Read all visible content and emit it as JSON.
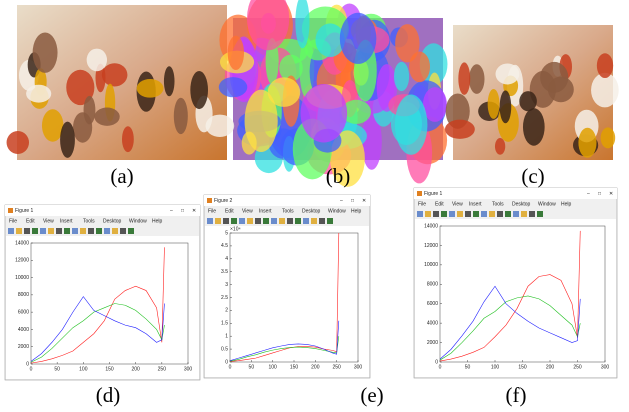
{
  "panels": [
    "(a)",
    "(b)",
    "(c)",
    "(d)",
    "(e)",
    "(f)"
  ],
  "windows": [
    {
      "title": "Figure 1",
      "menu": [
        "File",
        "Edit",
        "View",
        "Insert",
        "Tools",
        "Desktop",
        "Window",
        "Help"
      ]
    },
    {
      "title": "Figure 2",
      "menu": [
        "File",
        "Edit",
        "View",
        "Insert",
        "Tools",
        "Desktop",
        "Window",
        "Help"
      ]
    },
    {
      "title": "Figure 1",
      "menu": [
        "File",
        "Edit",
        "View",
        "Insert",
        "Tools",
        "Desktop",
        "Window",
        "Help"
      ]
    }
  ],
  "chart_data": [
    {
      "type": "line",
      "x": [
        0,
        20,
        40,
        60,
        80,
        100,
        120,
        140,
        160,
        180,
        200,
        220,
        240,
        250,
        255
      ],
      "xlim": [
        0,
        300
      ],
      "xticks": [
        0,
        50,
        100,
        150,
        200,
        250,
        300
      ],
      "ylim": [
        0,
        14000
      ],
      "yticks": [
        0,
        2000,
        4000,
        6000,
        8000,
        10000,
        12000,
        14000
      ],
      "series": [
        {
          "color": "#ff2020",
          "values": [
            100,
            300,
            600,
            1000,
            1500,
            2500,
            3500,
            5000,
            7500,
            8500,
            9000,
            8500,
            6500,
            2500,
            13500
          ]
        },
        {
          "color": "#20c020",
          "values": [
            200,
            800,
            1800,
            3000,
            4200,
            5000,
            6000,
            6500,
            7000,
            6800,
            6200,
            5200,
            4000,
            2800,
            4500
          ]
        },
        {
          "color": "#2020ff",
          "values": [
            300,
            1200,
            2500,
            4000,
            6000,
            7800,
            6200,
            5600,
            5000,
            4500,
            4200,
            3500,
            2500,
            2800,
            7000
          ]
        }
      ]
    },
    {
      "type": "line",
      "x": [
        0,
        20,
        40,
        60,
        80,
        100,
        120,
        140,
        160,
        180,
        200,
        220,
        240,
        250,
        255
      ],
      "xlim": [
        0,
        300
      ],
      "xticks": [
        0,
        50,
        100,
        150,
        200,
        250,
        300
      ],
      "ylim": [
        0,
        5
      ],
      "yticks": [
        0,
        0.5,
        1,
        1.5,
        2,
        2.5,
        3,
        3.5,
        4,
        4.5,
        5
      ],
      "y_multiplier": "×10⁴",
      "series": [
        {
          "color": "#ff2020",
          "values": [
            0.02,
            0.05,
            0.1,
            0.15,
            0.25,
            0.35,
            0.45,
            0.55,
            0.6,
            0.6,
            0.58,
            0.5,
            0.45,
            0.4,
            5
          ]
        },
        {
          "color": "#20c020",
          "values": [
            0.03,
            0.1,
            0.2,
            0.28,
            0.38,
            0.46,
            0.52,
            0.56,
            0.58,
            0.56,
            0.52,
            0.45,
            0.38,
            0.35,
            1
          ]
        },
        {
          "color": "#2020ff",
          "values": [
            0.05,
            0.15,
            0.25,
            0.35,
            0.45,
            0.55,
            0.62,
            0.68,
            0.7,
            0.68,
            0.62,
            0.5,
            0.35,
            0.3,
            1.6
          ]
        }
      ]
    },
    {
      "type": "line",
      "x": [
        0,
        20,
        40,
        60,
        80,
        100,
        120,
        140,
        160,
        180,
        200,
        220,
        240,
        250,
        255
      ],
      "xlim": [
        0,
        300
      ],
      "xticks": [
        0,
        50,
        100,
        150,
        200,
        250,
        300
      ],
      "ylim": [
        0,
        14000
      ],
      "yticks": [
        0,
        2000,
        4000,
        6000,
        8000,
        10000,
        12000,
        14000
      ],
      "series": [
        {
          "color": "#ff2020",
          "values": [
            100,
            300,
            600,
            1000,
            1500,
            2600,
            3800,
            5500,
            7800,
            8800,
            9000,
            8400,
            6000,
            2500,
            13500
          ]
        },
        {
          "color": "#20c020",
          "values": [
            200,
            900,
            2000,
            3200,
            4500,
            5200,
            6200,
            6600,
            6800,
            6500,
            5800,
            4800,
            3800,
            2600,
            4000
          ]
        },
        {
          "color": "#2020ff",
          "values": [
            300,
            1300,
            2700,
            4200,
            6200,
            7800,
            6000,
            5000,
            4200,
            3500,
            3000,
            2500,
            2000,
            2200,
            6500
          ]
        }
      ]
    }
  ]
}
